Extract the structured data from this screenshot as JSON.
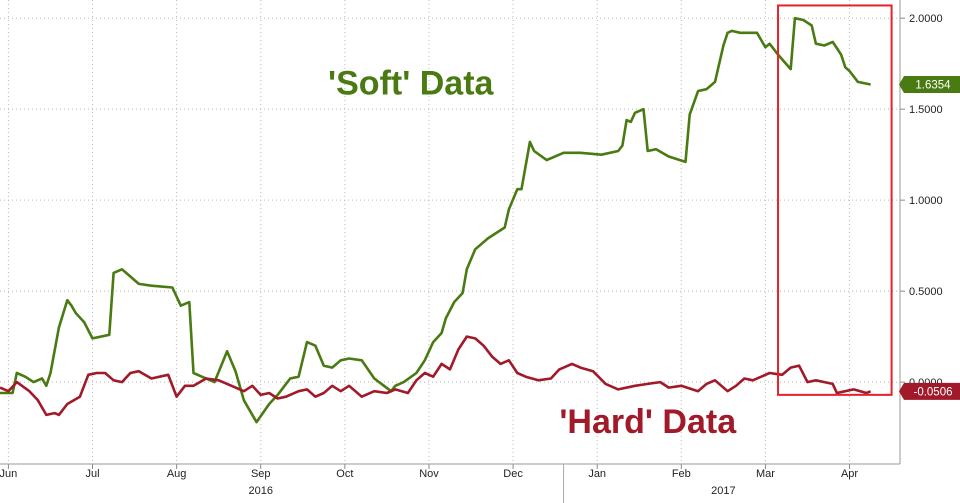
{
  "chart_data": {
    "type": "line",
    "title": "",
    "xlabel": "",
    "ylabel": "",
    "ylim": [
      -0.45,
      2.1
    ],
    "y_ticks": [
      {
        "value": 2.0,
        "label": "2.0000"
      },
      {
        "value": 1.5,
        "label": "1.5000"
      },
      {
        "value": 1.0,
        "label": "1.0000"
      },
      {
        "value": 0.5,
        "label": "0.5000"
      },
      {
        "value": 0.0,
        "label": "0.0000"
      }
    ],
    "x_ticks": [
      {
        "value": 0.0,
        "label": "Jun"
      },
      {
        "value": 1.0,
        "label": "Jul"
      },
      {
        "value": 2.0,
        "label": "Aug"
      },
      {
        "value": 3.0,
        "label": "Sep"
      },
      {
        "value": 4.0,
        "label": "Oct"
      },
      {
        "value": 5.0,
        "label": "Nov"
      },
      {
        "value": 6.0,
        "label": "Dec"
      },
      {
        "value": 7.0,
        "label": "Jan"
      },
      {
        "value": 8.0,
        "label": "Feb"
      },
      {
        "value": 9.0,
        "label": "Mar"
      },
      {
        "value": 10.0,
        "label": "Apr"
      }
    ],
    "year_labels": [
      {
        "value": 3.0,
        "label": "2016"
      },
      {
        "value": 8.5,
        "label": "2017"
      }
    ],
    "year_divider": 6.6,
    "grid": true,
    "series": [
      {
        "name": "'Soft' Data",
        "color": "#4a7a12",
        "last_label": "1.6354",
        "x": [
          -0.1,
          0.05,
          0.1,
          0.2,
          0.3,
          0.4,
          0.45,
          0.5,
          0.6,
          0.7,
          0.75,
          0.8,
          0.9,
          1.0,
          1.2,
          1.25,
          1.35,
          1.55,
          1.7,
          1.95,
          2.05,
          2.15,
          2.2,
          2.3,
          2.45,
          2.6,
          2.7,
          2.8,
          2.95,
          3.1,
          3.2,
          3.35,
          3.45,
          3.55,
          3.65,
          3.75,
          3.85,
          3.95,
          4.05,
          4.2,
          4.35,
          4.55,
          4.6,
          4.7,
          4.85,
          4.95,
          5.05,
          5.15,
          5.2,
          5.3,
          5.4,
          5.45,
          5.55,
          5.7,
          5.9,
          5.95,
          6.05,
          6.1,
          6.2,
          6.25,
          6.4,
          6.6,
          6.8,
          7.05,
          7.25,
          7.3,
          7.35,
          7.4,
          7.45,
          7.55,
          7.6,
          7.7,
          7.85,
          8.05,
          8.1,
          8.2,
          8.3,
          8.4,
          8.5,
          8.55,
          8.6,
          8.7,
          8.9,
          9.0,
          9.05,
          9.15,
          9.3,
          9.35,
          9.45,
          9.55,
          9.6,
          9.7,
          9.8,
          9.9,
          9.95,
          10.0,
          10.1,
          10.25
        ],
        "values": [
          -0.06,
          -0.06,
          0.05,
          0.03,
          0.0,
          0.02,
          -0.02,
          0.05,
          0.3,
          0.45,
          0.42,
          0.38,
          0.33,
          0.24,
          0.26,
          0.6,
          0.62,
          0.54,
          0.53,
          0.52,
          0.42,
          0.44,
          0.05,
          0.03,
          0.0,
          0.17,
          0.06,
          -0.1,
          -0.22,
          -0.12,
          -0.07,
          0.02,
          0.03,
          0.22,
          0.2,
          0.09,
          0.08,
          0.12,
          0.13,
          0.12,
          0.02,
          -0.05,
          -0.02,
          0.0,
          0.05,
          0.12,
          0.22,
          0.27,
          0.35,
          0.44,
          0.49,
          0.62,
          0.73,
          0.79,
          0.85,
          0.95,
          1.06,
          1.06,
          1.32,
          1.27,
          1.22,
          1.26,
          1.26,
          1.25,
          1.27,
          1.3,
          1.44,
          1.43,
          1.48,
          1.5,
          1.27,
          1.28,
          1.24,
          1.21,
          1.47,
          1.6,
          1.61,
          1.65,
          1.85,
          1.92,
          1.93,
          1.92,
          1.92,
          1.84,
          1.86,
          1.8,
          1.72,
          2.0,
          1.99,
          1.96,
          1.86,
          1.85,
          1.87,
          1.8,
          1.73,
          1.71,
          1.65,
          1.6354
        ]
      },
      {
        "name": "'Hard' Data",
        "color": "#a01a2a",
        "last_label": "-0.0506",
        "x": [
          -0.1,
          0.0,
          0.1,
          0.25,
          0.35,
          0.45,
          0.55,
          0.6,
          0.7,
          0.85,
          0.95,
          1.05,
          1.15,
          1.25,
          1.35,
          1.45,
          1.55,
          1.7,
          1.9,
          2.0,
          2.05,
          2.1,
          2.2,
          2.35,
          2.5,
          2.7,
          2.8,
          2.9,
          3.0,
          3.1,
          3.2,
          3.3,
          3.45,
          3.55,
          3.65,
          3.75,
          3.85,
          3.95,
          4.05,
          4.2,
          4.35,
          4.5,
          4.6,
          4.75,
          4.85,
          4.95,
          5.05,
          5.15,
          5.25,
          5.35,
          5.45,
          5.55,
          5.65,
          5.75,
          5.85,
          5.95,
          6.05,
          6.15,
          6.3,
          6.45,
          6.55,
          6.7,
          6.8,
          6.95,
          7.1,
          7.25,
          7.45,
          7.6,
          7.75,
          7.85,
          8.0,
          8.2,
          8.3,
          8.4,
          8.55,
          8.65,
          8.75,
          8.85,
          8.95,
          9.05,
          9.2,
          9.3,
          9.4,
          9.5,
          9.6,
          9.7,
          9.8,
          9.85,
          9.95,
          10.05,
          10.2,
          10.25
        ],
        "values": [
          -0.03,
          -0.05,
          0.0,
          -0.05,
          -0.1,
          -0.18,
          -0.17,
          -0.18,
          -0.12,
          -0.08,
          0.04,
          0.05,
          0.05,
          0.01,
          0.0,
          0.05,
          0.06,
          0.02,
          0.04,
          -0.08,
          -0.05,
          -0.02,
          -0.02,
          0.02,
          0.01,
          -0.03,
          -0.05,
          -0.02,
          -0.07,
          -0.06,
          -0.09,
          -0.08,
          -0.05,
          -0.04,
          -0.08,
          -0.06,
          -0.02,
          -0.05,
          -0.02,
          -0.08,
          -0.05,
          -0.06,
          -0.04,
          -0.06,
          0.01,
          0.05,
          0.03,
          0.1,
          0.07,
          0.18,
          0.25,
          0.24,
          0.2,
          0.14,
          0.1,
          0.12,
          0.05,
          0.03,
          0.01,
          0.02,
          0.07,
          0.1,
          0.08,
          0.06,
          -0.01,
          -0.04,
          -0.02,
          -0.01,
          0.0,
          -0.03,
          -0.02,
          -0.05,
          -0.01,
          0.01,
          -0.05,
          -0.02,
          0.02,
          0.01,
          0.03,
          0.05,
          0.04,
          0.08,
          0.09,
          0.0,
          0.01,
          0.0,
          -0.01,
          -0.06,
          -0.05,
          -0.04,
          -0.06,
          -0.0506
        ]
      }
    ],
    "annotations": [
      {
        "text": "'Soft' Data",
        "color": "#4a7a12",
        "x": 3.8,
        "y": 1.58
      },
      {
        "text": "'Hard' Data",
        "color": "#a01a2a",
        "x": 6.55,
        "y": -0.28
      }
    ],
    "highlight": {
      "x_from": 9.15,
      "x_to": 10.5,
      "y_from": -0.07,
      "y_to": 2.07,
      "color": "#e8202a"
    }
  }
}
